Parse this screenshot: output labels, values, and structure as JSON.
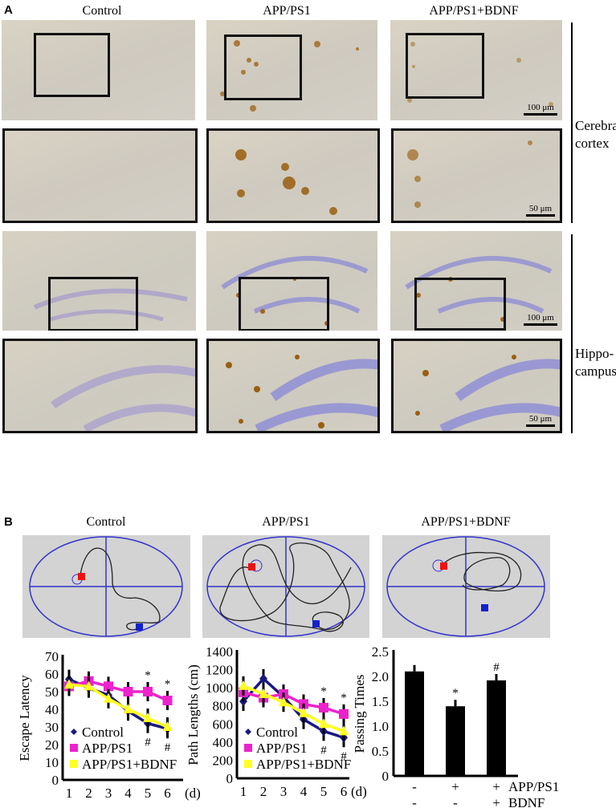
{
  "panel_a": {
    "label": "A",
    "columns": [
      "Control",
      "APP/PS1",
      "APP/PS1+BDNF"
    ],
    "regions": [
      "Cerebral cortex",
      "Hippo-campus"
    ],
    "scale_bars": {
      "overview": "100 μm",
      "inset": "50 μm"
    }
  },
  "panel_b": {
    "label": "B",
    "columns": [
      "Control",
      "APP/PS1",
      "APP/PS1+BDNF"
    ],
    "maze_colors": {
      "platform_marker": "#ee1111",
      "start_marker": "#1122cc",
      "quadrant_lines": "#3333cc",
      "track": "#222222"
    }
  },
  "chart_data": [
    {
      "type": "line",
      "ylabel": "Escape Latency",
      "xlabel": "(d)",
      "x": [
        1,
        2,
        3,
        4,
        5,
        6
      ],
      "ylim": [
        0,
        70
      ],
      "yticks": [
        0,
        10,
        20,
        30,
        40,
        50,
        60,
        70
      ],
      "legend": "bottom-left",
      "series": [
        {
          "name": "Control",
          "color": "#1a1a80",
          "values": [
            57,
            52,
            48,
            39,
            32,
            29
          ]
        },
        {
          "name": "APP/PS1",
          "color": "#ee22cc",
          "values": [
            53,
            56,
            53,
            50,
            50,
            45
          ]
        },
        {
          "name": "APP/PS1+BDNF",
          "color": "#ffff22",
          "values": [
            54,
            53,
            46,
            40,
            35,
            30
          ]
        }
      ],
      "annotations": [
        {
          "x": 5,
          "text": "*",
          "pos": "above"
        },
        {
          "x": 6,
          "text": "*",
          "pos": "above"
        },
        {
          "x": 5,
          "text": "#",
          "pos": "below"
        },
        {
          "x": 6,
          "text": "#",
          "pos": "below"
        }
      ]
    },
    {
      "type": "line",
      "ylabel": "Path Lengths (cm)",
      "xlabel": "(d)",
      "x": [
        1,
        2,
        3,
        4,
        5,
        6
      ],
      "ylim": [
        0,
        1400
      ],
      "yticks": [
        0,
        200,
        400,
        600,
        800,
        1000,
        1200,
        1400
      ],
      "legend": "bottom-left",
      "series": [
        {
          "name": "Control",
          "color": "#1a1a80",
          "values": [
            850,
            1100,
            900,
            650,
            520,
            450
          ]
        },
        {
          "name": "APP/PS1",
          "color": "#ee22cc",
          "values": [
            950,
            890,
            930,
            820,
            780,
            710
          ]
        },
        {
          "name": "APP/PS1+BDNF",
          "color": "#ffff22",
          "values": [
            1020,
            930,
            840,
            720,
            600,
            520
          ]
        }
      ],
      "annotations": [
        {
          "x": 5,
          "text": "*",
          "pos": "above"
        },
        {
          "x": 6,
          "text": "*",
          "pos": "above"
        },
        {
          "x": 5,
          "text": "#",
          "pos": "below"
        },
        {
          "x": 6,
          "text": "#",
          "pos": "below"
        }
      ]
    },
    {
      "type": "bar",
      "ylabel": "Passing Times",
      "ylim": [
        0,
        2.5
      ],
      "yticks": [
        "0",
        "0.5",
        "1.0",
        "1.5",
        "2.0",
        "2.5"
      ],
      "values": [
        2.1,
        1.4,
        1.92
      ],
      "color": "#000000",
      "factor_rows": [
        {
          "name": "APP/PS1",
          "levels": [
            "-",
            "+",
            "+"
          ]
        },
        {
          "name": "BDNF",
          "levels": [
            "-",
            "-",
            "+"
          ]
        }
      ],
      "annotations": [
        "",
        "*",
        "#"
      ]
    }
  ]
}
